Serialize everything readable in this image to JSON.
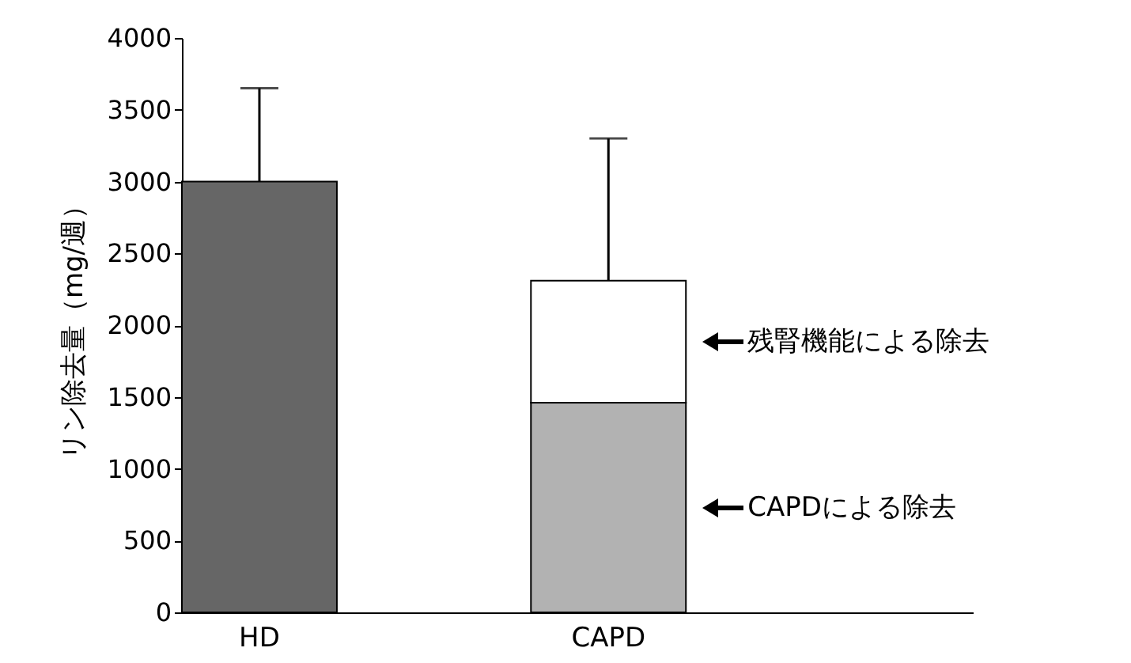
{
  "chart_data": {
    "type": "bar",
    "stacked": true,
    "ylabel": "リン除去量（mg/週）",
    "categories": [
      "HD",
      "CAPD"
    ],
    "ylim": [
      0,
      4000
    ],
    "yticks": [
      0,
      500,
      1000,
      1500,
      2000,
      2500,
      3000,
      3500,
      4000
    ],
    "grid": false,
    "series": [
      {
        "color": "#666666",
        "values": [
          3000,
          null
        ],
        "errors": [
          [
            3000,
            3650
          ],
          null
        ]
      },
      {
        "color": "#b2b2b2",
        "values": [
          null,
          1460
        ]
      },
      {
        "color": "#ffffff",
        "values": [
          null,
          850
        ],
        "errors": [
          null,
          [
            2310,
            3300
          ]
        ]
      }
    ],
    "annotations": [
      "残腎機能による除去",
      "CAPDによる除去"
    ]
  }
}
